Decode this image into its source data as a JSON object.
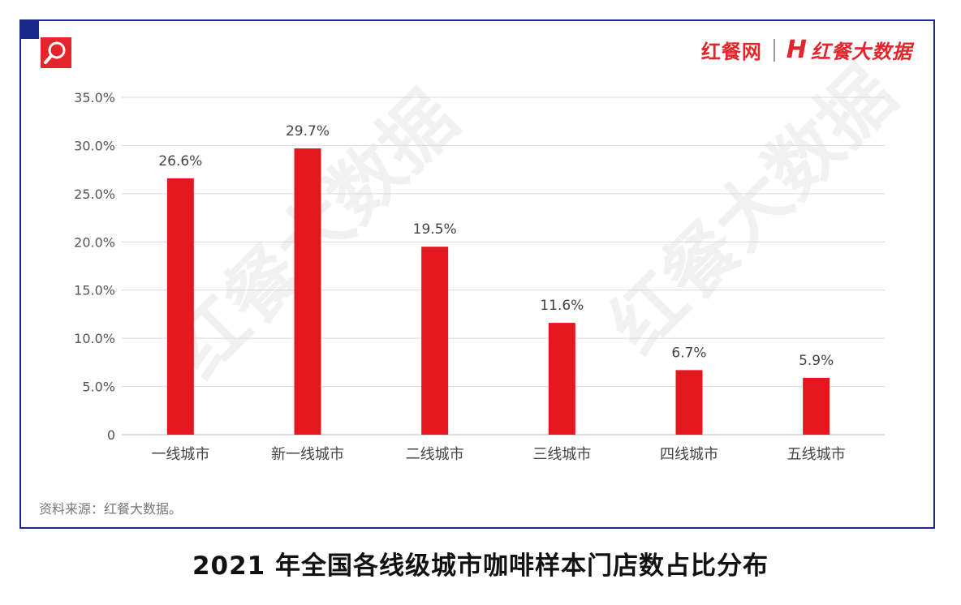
{
  "header": {
    "brand_primary": "红餐网",
    "brand_secondary_mark": "H",
    "brand_secondary": "红餐大数据"
  },
  "watermark_text": "红餐大数据",
  "source_note": "资料来源：红餐大数据。",
  "caption": "2021 年全国各线级城市咖啡样本门店数占比分布",
  "colors": {
    "bar": "#e3181e",
    "frame": "#1a2a8a",
    "grid": "#d9d9d9",
    "accent": "#e3262b"
  },
  "icons": {
    "badge": "search-icon"
  },
  "chart_data": {
    "type": "bar",
    "categories": [
      "一线城市",
      "新一线城市",
      "二线城市",
      "三线城市",
      "四线城市",
      "五线城市"
    ],
    "values": [
      26.6,
      29.7,
      19.5,
      11.6,
      6.7,
      5.9
    ],
    "value_labels": [
      "26.6%",
      "29.7%",
      "19.5%",
      "11.6%",
      "6.7%",
      "5.9%"
    ],
    "yticks": [
      0,
      5,
      10,
      15,
      20,
      25,
      30,
      35
    ],
    "ytick_labels": [
      "0",
      "5.0%",
      "10.0%",
      "15.0%",
      "20.0%",
      "25.0%",
      "30.0%",
      "35.0%"
    ],
    "ylim": [
      0,
      35
    ],
    "grid": true,
    "legend": "none"
  }
}
